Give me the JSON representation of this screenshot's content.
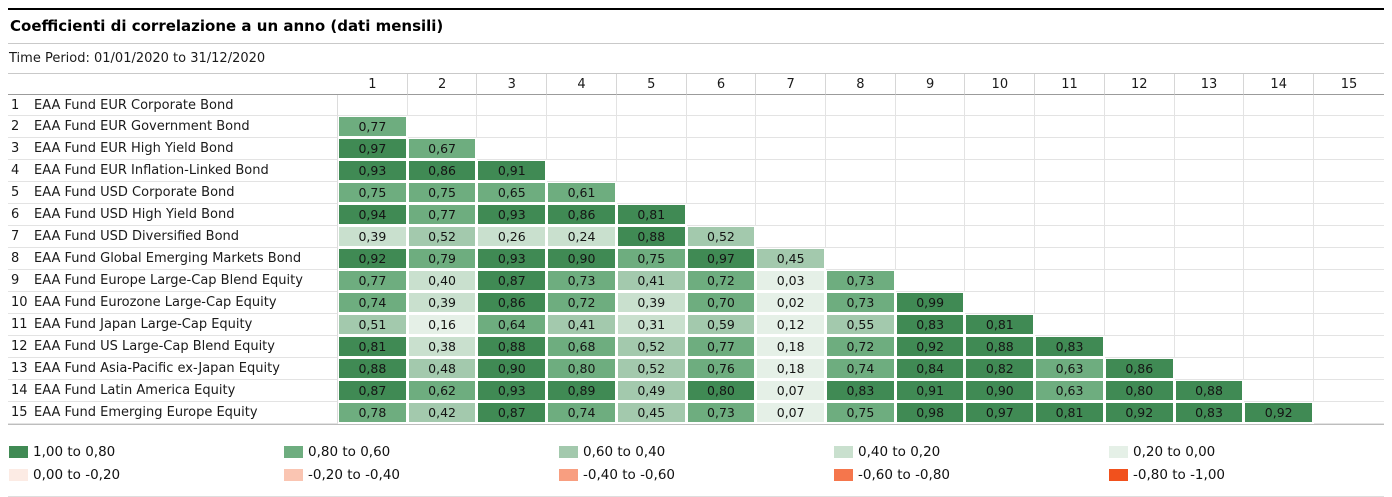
{
  "header": {
    "title": "Coefficienti di correlazione a un anno (dati mensili)",
    "time_period": "Time Period: 01/01/2020 to 31/12/2020"
  },
  "colors": {
    "g1": "#408a54",
    "g2": "#6ead7f",
    "g3": "#a3c9ad",
    "g4": "#c9e0ce",
    "g5": "#e5f0e7",
    "r1": "#fcebe4",
    "r2": "#fac5b2",
    "r3": "#f89e80",
    "r4": "#f5764c",
    "r5": "#f1511d"
  },
  "matrix": {
    "column_headers": [
      "1",
      "2",
      "3",
      "4",
      "5",
      "6",
      "7",
      "8",
      "9",
      "10",
      "11",
      "12",
      "13",
      "14",
      "15"
    ],
    "rows": [
      {
        "num": "1",
        "label": "EAA Fund EUR Corporate Bond",
        "cells": []
      },
      {
        "num": "2",
        "label": "EAA Fund EUR Government Bond",
        "cells": [
          {
            "v": "0,77",
            "c": "g2"
          }
        ]
      },
      {
        "num": "3",
        "label": "EAA Fund EUR High Yield Bond",
        "cells": [
          {
            "v": "0,97",
            "c": "g1"
          },
          {
            "v": "0,67",
            "c": "g2"
          }
        ]
      },
      {
        "num": "4",
        "label": "EAA Fund EUR Inflation-Linked Bond",
        "cells": [
          {
            "v": "0,93",
            "c": "g1"
          },
          {
            "v": "0,86",
            "c": "g1"
          },
          {
            "v": "0,91",
            "c": "g1"
          }
        ]
      },
      {
        "num": "5",
        "label": "EAA Fund USD Corporate Bond",
        "cells": [
          {
            "v": "0,75",
            "c": "g2"
          },
          {
            "v": "0,75",
            "c": "g2"
          },
          {
            "v": "0,65",
            "c": "g2"
          },
          {
            "v": "0,61",
            "c": "g2"
          }
        ]
      },
      {
        "num": "6",
        "label": "EAA Fund USD High Yield Bond",
        "cells": [
          {
            "v": "0,94",
            "c": "g1"
          },
          {
            "v": "0,77",
            "c": "g2"
          },
          {
            "v": "0,93",
            "c": "g1"
          },
          {
            "v": "0,86",
            "c": "g1"
          },
          {
            "v": "0,81",
            "c": "g1"
          }
        ]
      },
      {
        "num": "7",
        "label": "EAA Fund USD Diversified Bond",
        "cells": [
          {
            "v": "0,39",
            "c": "g4"
          },
          {
            "v": "0,52",
            "c": "g3"
          },
          {
            "v": "0,26",
            "c": "g4"
          },
          {
            "v": "0,24",
            "c": "g4"
          },
          {
            "v": "0,88",
            "c": "g1"
          },
          {
            "v": "0,52",
            "c": "g3"
          }
        ]
      },
      {
        "num": "8",
        "label": "EAA Fund Global Emerging Markets Bond",
        "cells": [
          {
            "v": "0,92",
            "c": "g1"
          },
          {
            "v": "0,79",
            "c": "g2"
          },
          {
            "v": "0,93",
            "c": "g1"
          },
          {
            "v": "0,90",
            "c": "g1"
          },
          {
            "v": "0,75",
            "c": "g2"
          },
          {
            "v": "0,97",
            "c": "g1"
          },
          {
            "v": "0,45",
            "c": "g3"
          }
        ]
      },
      {
        "num": "9",
        "label": "EAA Fund Europe Large-Cap Blend Equity",
        "cells": [
          {
            "v": "0,77",
            "c": "g2"
          },
          {
            "v": "0,40",
            "c": "g4"
          },
          {
            "v": "0,87",
            "c": "g1"
          },
          {
            "v": "0,73",
            "c": "g2"
          },
          {
            "v": "0,41",
            "c": "g3"
          },
          {
            "v": "0,72",
            "c": "g2"
          },
          {
            "v": "0,03",
            "c": "g5"
          },
          {
            "v": "0,73",
            "c": "g2"
          }
        ]
      },
      {
        "num": "10",
        "label": "EAA Fund Eurozone Large-Cap Equity",
        "cells": [
          {
            "v": "0,74",
            "c": "g2"
          },
          {
            "v": "0,39",
            "c": "g4"
          },
          {
            "v": "0,86",
            "c": "g1"
          },
          {
            "v": "0,72",
            "c": "g2"
          },
          {
            "v": "0,39",
            "c": "g4"
          },
          {
            "v": "0,70",
            "c": "g2"
          },
          {
            "v": "0,02",
            "c": "g5"
          },
          {
            "v": "0,73",
            "c": "g2"
          },
          {
            "v": "0,99",
            "c": "g1"
          }
        ]
      },
      {
        "num": "11",
        "label": "EAA Fund Japan Large-Cap Equity",
        "cells": [
          {
            "v": "0,51",
            "c": "g3"
          },
          {
            "v": "0,16",
            "c": "g5"
          },
          {
            "v": "0,64",
            "c": "g2"
          },
          {
            "v": "0,41",
            "c": "g3"
          },
          {
            "v": "0,31",
            "c": "g4"
          },
          {
            "v": "0,59",
            "c": "g3"
          },
          {
            "v": "0,12",
            "c": "g5"
          },
          {
            "v": "0,55",
            "c": "g3"
          },
          {
            "v": "0,83",
            "c": "g1"
          },
          {
            "v": "0,81",
            "c": "g1"
          }
        ]
      },
      {
        "num": "12",
        "label": "EAA Fund US Large-Cap Blend Equity",
        "cells": [
          {
            "v": "0,81",
            "c": "g1"
          },
          {
            "v": "0,38",
            "c": "g4"
          },
          {
            "v": "0,88",
            "c": "g1"
          },
          {
            "v": "0,68",
            "c": "g2"
          },
          {
            "v": "0,52",
            "c": "g3"
          },
          {
            "v": "0,77",
            "c": "g2"
          },
          {
            "v": "0,18",
            "c": "g5"
          },
          {
            "v": "0,72",
            "c": "g2"
          },
          {
            "v": "0,92",
            "c": "g1"
          },
          {
            "v": "0,88",
            "c": "g1"
          },
          {
            "v": "0,83",
            "c": "g1"
          }
        ]
      },
      {
        "num": "13",
        "label": "EAA Fund Asia-Pacific ex-Japan Equity",
        "cells": [
          {
            "v": "0,88",
            "c": "g1"
          },
          {
            "v": "0,48",
            "c": "g3"
          },
          {
            "v": "0,90",
            "c": "g1"
          },
          {
            "v": "0,80",
            "c": "g2"
          },
          {
            "v": "0,52",
            "c": "g3"
          },
          {
            "v": "0,76",
            "c": "g2"
          },
          {
            "v": "0,18",
            "c": "g5"
          },
          {
            "v": "0,74",
            "c": "g2"
          },
          {
            "v": "0,84",
            "c": "g1"
          },
          {
            "v": "0,82",
            "c": "g1"
          },
          {
            "v": "0,63",
            "c": "g2"
          },
          {
            "v": "0,86",
            "c": "g1"
          }
        ]
      },
      {
        "num": "14",
        "label": "EAA Fund Latin America Equity",
        "cells": [
          {
            "v": "0,87",
            "c": "g1"
          },
          {
            "v": "0,62",
            "c": "g2"
          },
          {
            "v": "0,93",
            "c": "g1"
          },
          {
            "v": "0,89",
            "c": "g1"
          },
          {
            "v": "0,49",
            "c": "g3"
          },
          {
            "v": "0,80",
            "c": "g1"
          },
          {
            "v": "0,07",
            "c": "g5"
          },
          {
            "v": "0,83",
            "c": "g1"
          },
          {
            "v": "0,91",
            "c": "g1"
          },
          {
            "v": "0,90",
            "c": "g1"
          },
          {
            "v": "0,63",
            "c": "g2"
          },
          {
            "v": "0,80",
            "c": "g1"
          },
          {
            "v": "0,88",
            "c": "g1"
          }
        ]
      },
      {
        "num": "15",
        "label": "EAA Fund Emerging Europe Equity",
        "cells": [
          {
            "v": "0,78",
            "c": "g2"
          },
          {
            "v": "0,42",
            "c": "g3"
          },
          {
            "v": "0,87",
            "c": "g1"
          },
          {
            "v": "0,74",
            "c": "g2"
          },
          {
            "v": "0,45",
            "c": "g3"
          },
          {
            "v": "0,73",
            "c": "g2"
          },
          {
            "v": "0,07",
            "c": "g5"
          },
          {
            "v": "0,75",
            "c": "g2"
          },
          {
            "v": "0,98",
            "c": "g1"
          },
          {
            "v": "0,97",
            "c": "g1"
          },
          {
            "v": "0,81",
            "c": "g1"
          },
          {
            "v": "0,92",
            "c": "g1"
          },
          {
            "v": "0,83",
            "c": "g1"
          },
          {
            "v": "0,92",
            "c": "g1"
          }
        ]
      }
    ]
  },
  "legend": {
    "items": [
      {
        "label": "1,00 to 0,80",
        "color": "#408a54"
      },
      {
        "label": "0,80 to 0,60",
        "color": "#6ead7f"
      },
      {
        "label": "0,60 to 0,40",
        "color": "#a3c9ad"
      },
      {
        "label": "0,40 to 0,20",
        "color": "#c9e0ce"
      },
      {
        "label": "0,20 to 0,00",
        "color": "#e5f0e7"
      },
      {
        "label": "0,00 to -0,20",
        "color": "#fcebe4"
      },
      {
        "label": "-0,20 to -0,40",
        "color": "#fac5b2"
      },
      {
        "label": "-0,40 to -0,60",
        "color": "#f89e80"
      },
      {
        "label": "-0,60 to -0,80",
        "color": "#f5764c"
      },
      {
        "label": "-0,80 to -1,00",
        "color": "#f1511d"
      }
    ]
  },
  "chart_data": {
    "type": "heatmap",
    "title": "Coefficienti di correlazione a un anno (dati mensili)",
    "subtitle": "Time Period: 01/01/2020 to 31/12/2020",
    "row_labels": [
      "EAA Fund EUR Corporate Bond",
      "EAA Fund EUR Government Bond",
      "EAA Fund EUR High Yield Bond",
      "EAA Fund EUR Inflation-Linked Bond",
      "EAA Fund USD Corporate Bond",
      "EAA Fund USD High Yield Bond",
      "EAA Fund USD Diversified Bond",
      "EAA Fund Global Emerging Markets Bond",
      "EAA Fund Europe Large-Cap Blend Equity",
      "EAA Fund Eurozone Large-Cap Equity",
      "EAA Fund Japan Large-Cap Equity",
      "EAA Fund US Large-Cap Blend Equity",
      "EAA Fund Asia-Pacific ex-Japan Equity",
      "EAA Fund Latin America Equity",
      "EAA Fund Emerging Europe Equity"
    ],
    "col_labels": [
      "1",
      "2",
      "3",
      "4",
      "5",
      "6",
      "7",
      "8",
      "9",
      "10",
      "11",
      "12",
      "13",
      "14",
      "15"
    ],
    "matrix_lower_triangle": [
      [],
      [
        0.77
      ],
      [
        0.97,
        0.67
      ],
      [
        0.93,
        0.86,
        0.91
      ],
      [
        0.75,
        0.75,
        0.65,
        0.61
      ],
      [
        0.94,
        0.77,
        0.93,
        0.86,
        0.81
      ],
      [
        0.39,
        0.52,
        0.26,
        0.24,
        0.88,
        0.52
      ],
      [
        0.92,
        0.79,
        0.93,
        0.9,
        0.75,
        0.97,
        0.45
      ],
      [
        0.77,
        0.4,
        0.87,
        0.73,
        0.41,
        0.72,
        0.03,
        0.73
      ],
      [
        0.74,
        0.39,
        0.86,
        0.72,
        0.39,
        0.7,
        0.02,
        0.73,
        0.99
      ],
      [
        0.51,
        0.16,
        0.64,
        0.41,
        0.31,
        0.59,
        0.12,
        0.55,
        0.83,
        0.81
      ],
      [
        0.81,
        0.38,
        0.88,
        0.68,
        0.52,
        0.77,
        0.18,
        0.72,
        0.92,
        0.88,
        0.83
      ],
      [
        0.88,
        0.48,
        0.9,
        0.8,
        0.52,
        0.76,
        0.18,
        0.74,
        0.84,
        0.82,
        0.63,
        0.86
      ],
      [
        0.87,
        0.62,
        0.93,
        0.89,
        0.49,
        0.8,
        0.07,
        0.83,
        0.91,
        0.9,
        0.63,
        0.8,
        0.88
      ],
      [
        0.78,
        0.42,
        0.87,
        0.74,
        0.45,
        0.73,
        0.07,
        0.75,
        0.98,
        0.97,
        0.81,
        0.92,
        0.83,
        0.92
      ]
    ],
    "value_range": [
      -1.0,
      1.0
    ],
    "legend_buckets": [
      "1,00 to 0,80",
      "0,80 to 0,60",
      "0,60 to 0,40",
      "0,40 to 0,20",
      "0,20 to 0,00",
      "0,00 to -0,20",
      "-0,20 to -0,40",
      "-0,40 to -0,60",
      "-0,60 to -0,80",
      "-0,80 to -1,00"
    ],
    "legend_position": "bottom"
  }
}
